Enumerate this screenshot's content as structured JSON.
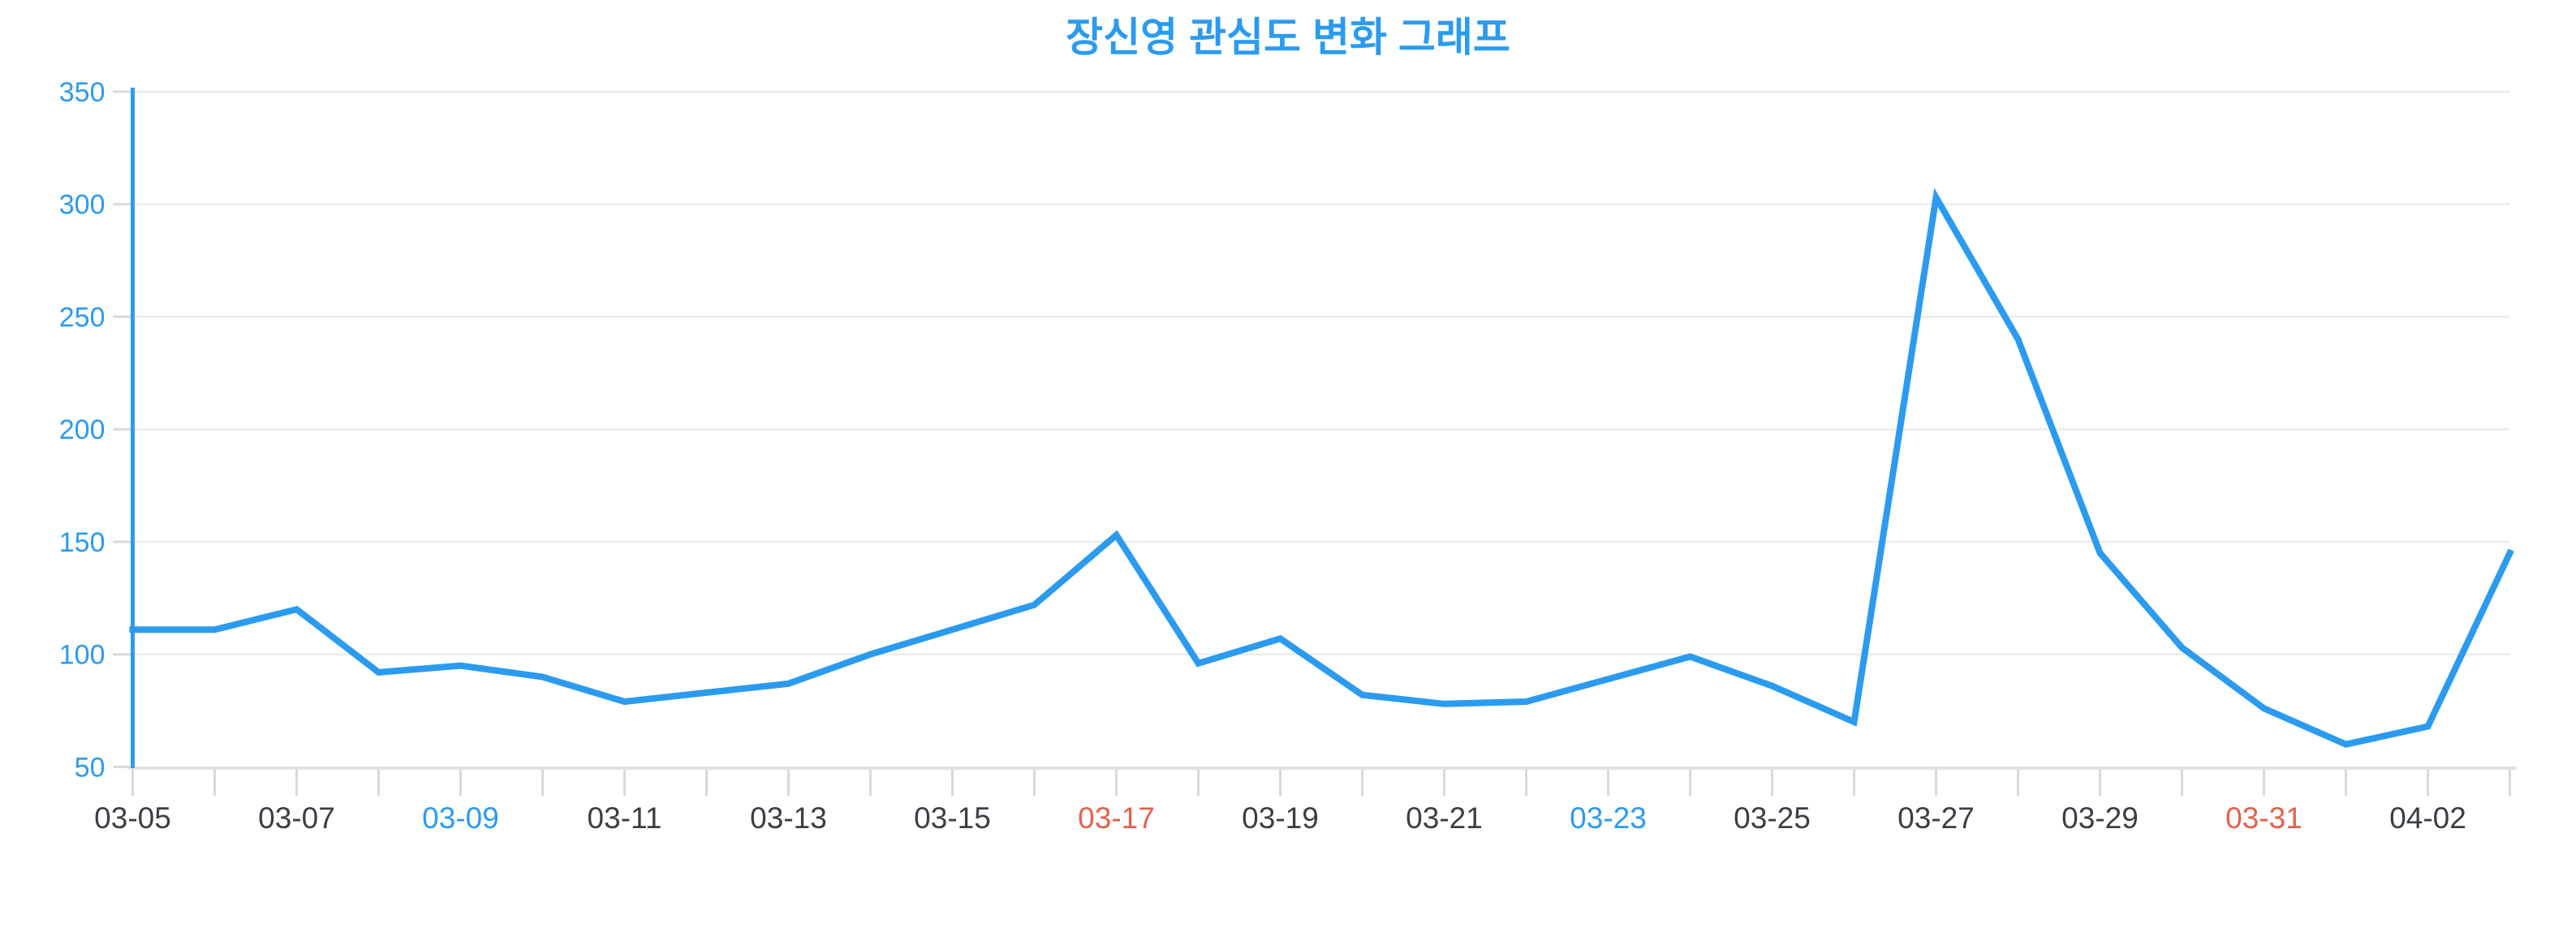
{
  "page": {
    "title": "장신영 관심도 변화 그래프"
  },
  "chart_data": {
    "type": "line",
    "title": "장신영 관심도 변화 그래프",
    "xlabel": "",
    "ylabel": "",
    "ylim": [
      50,
      350
    ],
    "yticks": [
      50,
      100,
      150,
      200,
      250,
      300,
      350
    ],
    "grid": "horizontal",
    "legend": "none",
    "x": [
      "03-05",
      "03-06",
      "03-07",
      "03-08",
      "03-09",
      "03-10",
      "03-11",
      "03-12",
      "03-13",
      "03-14",
      "03-15",
      "03-16",
      "03-17",
      "03-18",
      "03-19",
      "03-20",
      "03-21",
      "03-22",
      "03-23",
      "03-24",
      "03-25",
      "03-26",
      "03-27",
      "03-28",
      "03-29",
      "03-30",
      "03-31",
      "04-01",
      "04-02",
      "04-03"
    ],
    "values": [
      111,
      111,
      120,
      92,
      95,
      90,
      79,
      83,
      87,
      100,
      111,
      122,
      153,
      96,
      107,
      82,
      78,
      79,
      89,
      99,
      86,
      70,
      303,
      240,
      145,
      103,
      76,
      60,
      68,
      145
    ],
    "x_axis_labels": [
      {
        "text": "03-05",
        "day_type": "weekday"
      },
      {
        "text": "03-07",
        "day_type": "weekday"
      },
      {
        "text": "03-09",
        "day_type": "saturday"
      },
      {
        "text": "03-11",
        "day_type": "weekday"
      },
      {
        "text": "03-13",
        "day_type": "weekday"
      },
      {
        "text": "03-15",
        "day_type": "weekday"
      },
      {
        "text": "03-17",
        "day_type": "sunday"
      },
      {
        "text": "03-19",
        "day_type": "weekday"
      },
      {
        "text": "03-21",
        "day_type": "weekday"
      },
      {
        "text": "03-23",
        "day_type": "saturday"
      },
      {
        "text": "03-25",
        "day_type": "weekday"
      },
      {
        "text": "03-27",
        "day_type": "weekday"
      },
      {
        "text": "03-29",
        "day_type": "weekday"
      },
      {
        "text": "03-31",
        "day_type": "sunday"
      },
      {
        "text": "04-02",
        "day_type": "weekday"
      }
    ],
    "colors": {
      "line": "#2b9bf0",
      "title": "#2b9bf0",
      "y_axis_line": "#2b9bf0",
      "y_tick_label": "#2b9bf0",
      "weekday_label": "#3a3f45",
      "saturday_label": "#2b9bf0",
      "sunday_label": "#e2614c",
      "gridline": "#ececec",
      "baseline": "#e2e2e2",
      "tick": "#d9d9d9"
    }
  }
}
